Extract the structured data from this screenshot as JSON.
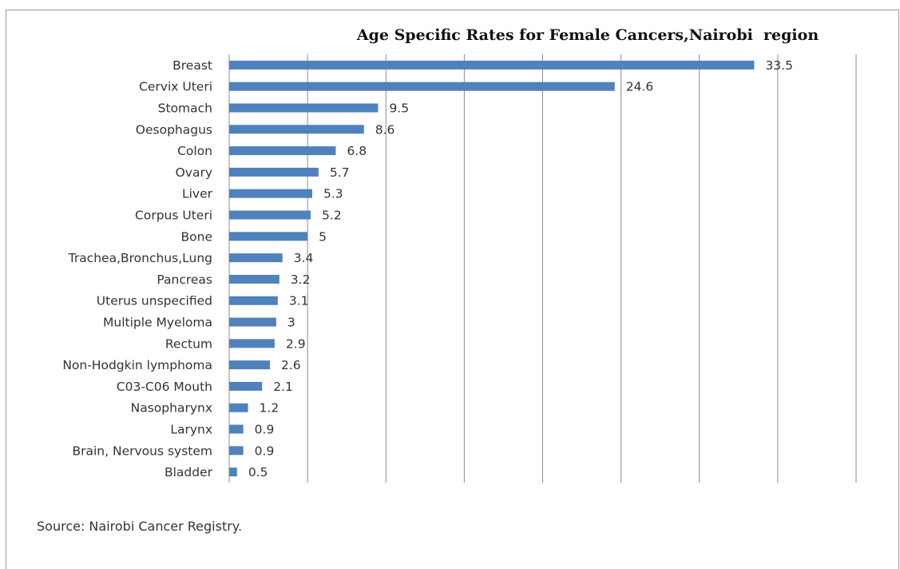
{
  "chart_data": {
    "type": "bar",
    "orientation": "horizontal",
    "title": "Age Specific Rates for Female Cancers,Nairobi  region",
    "xlabel": "",
    "ylabel": "",
    "xlim": [
      0,
      40
    ],
    "grid": true,
    "categories": [
      "Breast",
      "Cervix Uteri",
      "Stomach",
      "Oesophagus",
      "Colon",
      "Ovary",
      "Liver",
      "Corpus Uteri",
      "Bone",
      "Trachea,Bronchus,Lung",
      "Pancreas",
      "Uterus unspecified",
      "Multiple Myeloma",
      "Rectum",
      "Non-Hodgkin lymphoma",
      "C03-C06 Mouth",
      "Nasopharynx",
      "Larynx",
      "Brain, Nervous system",
      "Bladder"
    ],
    "values": [
      33.5,
      24.6,
      9.5,
      8.6,
      6.8,
      5.7,
      5.3,
      5.2,
      5,
      3.4,
      3.2,
      3.1,
      3,
      2.9,
      2.6,
      2.1,
      1.2,
      0.9,
      0.9,
      0.5
    ],
    "value_labels": [
      "33.5",
      "24.6",
      "9.5",
      "8.6",
      "6.8",
      "5.7",
      "5.3",
      "5.2",
      "5",
      "3.4",
      "3.2",
      "3.1",
      "3",
      "2.9",
      "2.6",
      "2.1",
      "1.2",
      "0.9",
      "0.9",
      "0.5"
    ],
    "bar_color": "#4f81bd",
    "source": "Source: Nairobi Cancer Registry."
  }
}
